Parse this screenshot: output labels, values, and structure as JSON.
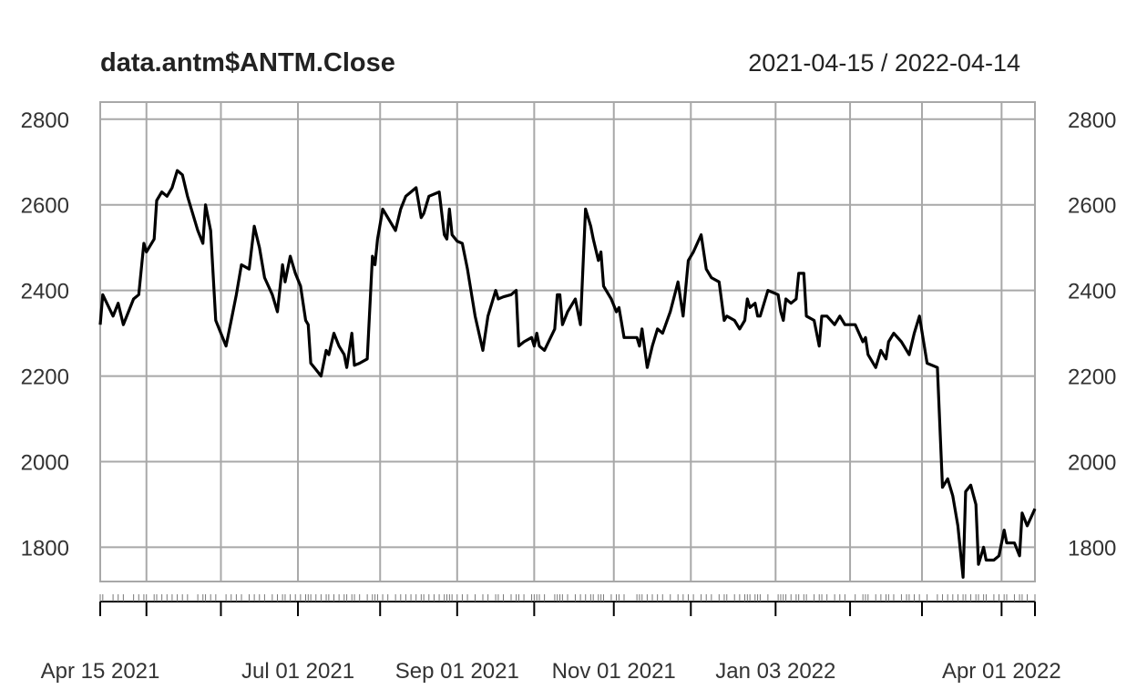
{
  "chart_data": {
    "type": "line",
    "title": "data.antm$ANTM.Close",
    "date_range": "2021-04-15 / 2022-04-14",
    "xlabel": "",
    "ylabel": "",
    "x_start": "2021-04-15",
    "x_end": "2022-04-14",
    "ylim": [
      1720,
      2840
    ],
    "y_ticks": [
      1800,
      2000,
      2200,
      2400,
      2600,
      2800
    ],
    "grid": true,
    "x_tick_labels": [
      {
        "date": "2021-04-15",
        "label": "Apr 15 2021"
      },
      {
        "date": "2021-07-01",
        "label": "Jul 01 2021"
      },
      {
        "date": "2021-09-01",
        "label": "Sep 01 2021"
      },
      {
        "date": "2021-11-01",
        "label": "Nov 01 2021"
      },
      {
        "date": "2022-01-03",
        "label": "Jan 03 2022"
      },
      {
        "date": "2022-04-01",
        "label": "Apr 01 2022"
      }
    ],
    "x_major_dates": [
      "2021-04-15",
      "2021-05-03",
      "2021-06-01",
      "2021-07-01",
      "2021-08-02",
      "2021-09-01",
      "2021-10-01",
      "2021-11-01",
      "2021-12-01",
      "2022-01-03",
      "2022-02-01",
      "2022-03-01",
      "2022-04-01",
      "2022-04-14"
    ],
    "series": [
      {
        "values": [
          [
            "2021-04-15",
            2320
          ],
          [
            "2021-04-16",
            2390
          ],
          [
            "2021-04-20",
            2340
          ],
          [
            "2021-04-22",
            2370
          ],
          [
            "2021-04-24",
            2320
          ],
          [
            "2021-04-28",
            2380
          ],
          [
            "2021-04-30",
            2390
          ],
          [
            "2021-05-02",
            2510
          ],
          [
            "2021-05-03",
            2490
          ],
          [
            "2021-05-06",
            2520
          ],
          [
            "2021-05-07",
            2610
          ],
          [
            "2021-05-09",
            2630
          ],
          [
            "2021-05-11",
            2620
          ],
          [
            "2021-05-13",
            2640
          ],
          [
            "2021-05-15",
            2680
          ],
          [
            "2021-05-17",
            2670
          ],
          [
            "2021-05-19",
            2620
          ],
          [
            "2021-05-23",
            2540
          ],
          [
            "2021-05-25",
            2510
          ],
          [
            "2021-05-26",
            2600
          ],
          [
            "2021-05-28",
            2540
          ],
          [
            "2021-05-30",
            2330
          ],
          [
            "2021-06-03",
            2270
          ],
          [
            "2021-06-05",
            2330
          ],
          [
            "2021-06-07",
            2390
          ],
          [
            "2021-06-09",
            2460
          ],
          [
            "2021-06-12",
            2450
          ],
          [
            "2021-06-14",
            2550
          ],
          [
            "2021-06-16",
            2500
          ],
          [
            "2021-06-18",
            2430
          ],
          [
            "2021-06-21",
            2390
          ],
          [
            "2021-06-23",
            2350
          ],
          [
            "2021-06-25",
            2460
          ],
          [
            "2021-06-26",
            2420
          ],
          [
            "2021-06-28",
            2480
          ],
          [
            "2021-06-30",
            2440
          ],
          [
            "2021-07-02",
            2410
          ],
          [
            "2021-07-04",
            2330
          ],
          [
            "2021-07-05",
            2320
          ],
          [
            "2021-07-06",
            2230
          ],
          [
            "2021-07-08",
            2215
          ],
          [
            "2021-07-10",
            2200
          ],
          [
            "2021-07-12",
            2260
          ],
          [
            "2021-07-13",
            2250
          ],
          [
            "2021-07-15",
            2300
          ],
          [
            "2021-07-17",
            2270
          ],
          [
            "2021-07-19",
            2250
          ],
          [
            "2021-07-20",
            2220
          ],
          [
            "2021-07-22",
            2300
          ],
          [
            "2021-07-23",
            2225
          ],
          [
            "2021-07-25",
            2230
          ],
          [
            "2021-07-28",
            2240
          ],
          [
            "2021-07-30",
            2480
          ],
          [
            "2021-07-31",
            2460
          ],
          [
            "2021-08-01",
            2520
          ],
          [
            "2021-08-03",
            2590
          ],
          [
            "2021-08-05",
            2570
          ],
          [
            "2021-08-08",
            2540
          ],
          [
            "2021-08-10",
            2590
          ],
          [
            "2021-08-12",
            2620
          ],
          [
            "2021-08-14",
            2630
          ],
          [
            "2021-08-16",
            2640
          ],
          [
            "2021-08-18",
            2570
          ],
          [
            "2021-08-19",
            2580
          ],
          [
            "2021-08-21",
            2620
          ],
          [
            "2021-08-23",
            2625
          ],
          [
            "2021-08-25",
            2630
          ],
          [
            "2021-08-27",
            2530
          ],
          [
            "2021-08-28",
            2520
          ],
          [
            "2021-08-29",
            2590
          ],
          [
            "2021-08-30",
            2530
          ],
          [
            "2021-09-01",
            2515
          ],
          [
            "2021-09-03",
            2510
          ],
          [
            "2021-09-05",
            2450
          ],
          [
            "2021-09-08",
            2340
          ],
          [
            "2021-09-11",
            2260
          ],
          [
            "2021-09-13",
            2340
          ],
          [
            "2021-09-16",
            2400
          ],
          [
            "2021-09-17",
            2380
          ],
          [
            "2021-09-19",
            2385
          ],
          [
            "2021-09-22",
            2390
          ],
          [
            "2021-09-24",
            2400
          ],
          [
            "2021-09-25",
            2270
          ],
          [
            "2021-09-27",
            2280
          ],
          [
            "2021-09-30",
            2290
          ],
          [
            "2021-10-01",
            2270
          ],
          [
            "2021-10-02",
            2300
          ],
          [
            "2021-10-03",
            2270
          ],
          [
            "2021-10-05",
            2260
          ],
          [
            "2021-10-09",
            2310
          ],
          [
            "2021-10-10",
            2390
          ],
          [
            "2021-10-11",
            2390
          ],
          [
            "2021-10-12",
            2320
          ],
          [
            "2021-10-14",
            2350
          ],
          [
            "2021-10-17",
            2380
          ],
          [
            "2021-10-19",
            2320
          ],
          [
            "2021-10-21",
            2590
          ],
          [
            "2021-10-23",
            2550
          ],
          [
            "2021-10-24",
            2520
          ],
          [
            "2021-10-26",
            2470
          ],
          [
            "2021-10-27",
            2490
          ],
          [
            "2021-10-28",
            2410
          ],
          [
            "2021-10-31",
            2380
          ],
          [
            "2021-11-02",
            2350
          ],
          [
            "2021-11-03",
            2360
          ],
          [
            "2021-11-05",
            2290
          ],
          [
            "2021-11-10",
            2290
          ],
          [
            "2021-11-11",
            2270
          ],
          [
            "2021-11-12",
            2310
          ],
          [
            "2021-11-14",
            2220
          ],
          [
            "2021-11-16",
            2270
          ],
          [
            "2021-11-18",
            2310
          ],
          [
            "2021-11-20",
            2300
          ],
          [
            "2021-11-23",
            2350
          ],
          [
            "2021-11-26",
            2420
          ],
          [
            "2021-11-28",
            2340
          ],
          [
            "2021-11-30",
            2470
          ],
          [
            "2021-12-02",
            2490
          ],
          [
            "2021-12-05",
            2530
          ],
          [
            "2021-12-07",
            2450
          ],
          [
            "2021-12-09",
            2430
          ],
          [
            "2021-12-12",
            2420
          ],
          [
            "2021-12-14",
            2330
          ],
          [
            "2021-12-15",
            2340
          ],
          [
            "2021-12-18",
            2330
          ],
          [
            "2021-12-20",
            2310
          ],
          [
            "2021-12-22",
            2330
          ],
          [
            "2021-12-23",
            2380
          ],
          [
            "2021-12-24",
            2360
          ],
          [
            "2021-12-26",
            2370
          ],
          [
            "2021-12-27",
            2340
          ],
          [
            "2021-12-28",
            2340
          ],
          [
            "2021-12-31",
            2400
          ],
          [
            "2022-01-04",
            2390
          ],
          [
            "2022-01-05",
            2350
          ],
          [
            "2022-01-06",
            2330
          ],
          [
            "2022-01-07",
            2380
          ],
          [
            "2022-01-09",
            2370
          ],
          [
            "2022-01-11",
            2380
          ],
          [
            "2022-01-12",
            2440
          ],
          [
            "2022-01-14",
            2440
          ],
          [
            "2022-01-15",
            2340
          ],
          [
            "2022-01-18",
            2330
          ],
          [
            "2022-01-20",
            2270
          ],
          [
            "2022-01-21",
            2340
          ],
          [
            "2022-01-23",
            2340
          ],
          [
            "2022-01-26",
            2320
          ],
          [
            "2022-01-28",
            2340
          ],
          [
            "2022-01-30",
            2320
          ],
          [
            "2022-02-03",
            2320
          ],
          [
            "2022-02-06",
            2280
          ],
          [
            "2022-02-07",
            2290
          ],
          [
            "2022-02-08",
            2250
          ],
          [
            "2022-02-11",
            2220
          ],
          [
            "2022-02-13",
            2260
          ],
          [
            "2022-02-15",
            2240
          ],
          [
            "2022-02-16",
            2280
          ],
          [
            "2022-02-18",
            2300
          ],
          [
            "2022-02-21",
            2280
          ],
          [
            "2022-02-23",
            2260
          ],
          [
            "2022-02-24",
            2250
          ],
          [
            "2022-02-26",
            2300
          ],
          [
            "2022-02-28",
            2340
          ],
          [
            "2022-03-03",
            2230
          ],
          [
            "2022-03-07",
            2220
          ],
          [
            "2022-03-09",
            1940
          ],
          [
            "2022-03-11",
            1960
          ],
          [
            "2022-03-13",
            1920
          ],
          [
            "2022-03-15",
            1850
          ],
          [
            "2022-03-17",
            1730
          ],
          [
            "2022-03-18",
            1930
          ],
          [
            "2022-03-20",
            1945
          ],
          [
            "2022-03-22",
            1900
          ],
          [
            "2022-03-23",
            1760
          ],
          [
            "2022-03-25",
            1800
          ],
          [
            "2022-03-26",
            1770
          ],
          [
            "2022-03-29",
            1770
          ],
          [
            "2022-03-31",
            1780
          ],
          [
            "2022-04-02",
            1840
          ],
          [
            "2022-04-03",
            1810
          ],
          [
            "2022-04-06",
            1810
          ],
          [
            "2022-04-08",
            1780
          ],
          [
            "2022-04-09",
            1880
          ],
          [
            "2022-04-11",
            1850
          ],
          [
            "2022-04-14",
            1890
          ]
        ]
      }
    ]
  }
}
